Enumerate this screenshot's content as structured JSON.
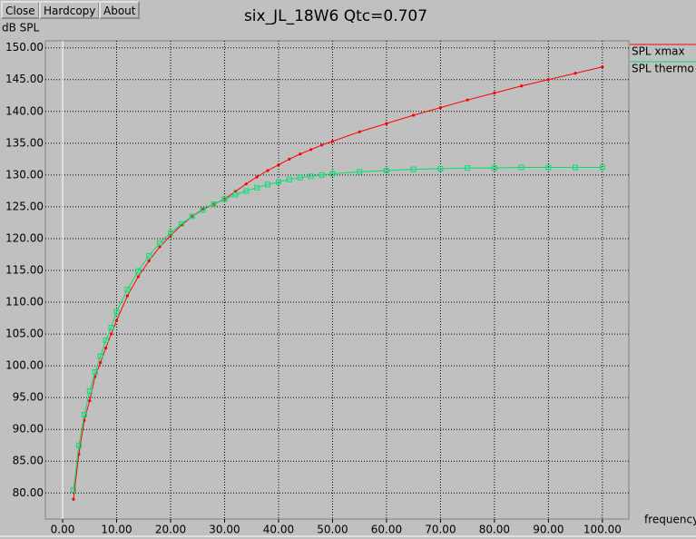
{
  "buttons": [
    "Close",
    "Hardcopy",
    "About"
  ],
  "chart_data": {
    "type": "line",
    "title": "six_JL_18W6 Qtc=0.707",
    "y_label": "dB SPL",
    "x_label": "frequency",
    "grid": true,
    "legend": "right",
    "xlim": [
      -3.2,
      104.9
    ],
    "ylim": [
      75.9,
      151.1
    ],
    "xticks": [
      {
        "value": 0,
        "label": "0.00"
      },
      {
        "value": 10,
        "label": "10.00"
      },
      {
        "value": 20,
        "label": "20.00"
      },
      {
        "value": 30,
        "label": "30.00"
      },
      {
        "value": 40,
        "label": "40.00"
      },
      {
        "value": 50,
        "label": "50.00"
      },
      {
        "value": 60,
        "label": "60.00"
      },
      {
        "value": 70,
        "label": "70.00"
      },
      {
        "value": 80,
        "label": "80.00"
      },
      {
        "value": 90,
        "label": "90.00"
      },
      {
        "value": 100,
        "label": "100.00"
      }
    ],
    "yticks": [
      {
        "value": 80,
        "label": "80.00"
      },
      {
        "value": 85,
        "label": "85.00"
      },
      {
        "value": 90,
        "label": "90.00"
      },
      {
        "value": 95,
        "label": "95.00"
      },
      {
        "value": 100,
        "label": "100.00"
      },
      {
        "value": 105,
        "label": "105.00"
      },
      {
        "value": 110,
        "label": "110.00"
      },
      {
        "value": 115,
        "label": "115.00"
      },
      {
        "value": 120,
        "label": "120.00"
      },
      {
        "value": 125,
        "label": "125.00"
      },
      {
        "value": 130,
        "label": "130.00"
      },
      {
        "value": 135,
        "label": "135.00"
      },
      {
        "value": 140,
        "label": "140.00"
      },
      {
        "value": 145,
        "label": "145.00"
      },
      {
        "value": 150,
        "label": "150.00"
      }
    ],
    "x": [
      2,
      3,
      4,
      5,
      6,
      7,
      8,
      9,
      10,
      12,
      14,
      16,
      18,
      20,
      22,
      24,
      26,
      28,
      30,
      32,
      34,
      36,
      38,
      40,
      42,
      44,
      46,
      48,
      50,
      55,
      60,
      65,
      70,
      75,
      80,
      85,
      90,
      95,
      100
    ],
    "series": [
      {
        "name": "SPL xmax",
        "color": "#ff0000",
        "marker": "dot",
        "values": [
          79,
          86.1,
          91.4,
          94.5,
          98.3,
          100.5,
          102.8,
          105,
          107.1,
          111,
          114,
          116.5,
          118.7,
          120.5,
          122.1,
          123.5,
          124.6,
          125.4,
          126.2,
          127.4,
          128.6,
          129.7,
          130.7,
          131.6,
          132.5,
          133.3,
          134,
          134.7,
          135.3,
          136.8,
          138.1,
          139.4,
          140.6,
          141.8,
          142.9,
          144,
          145,
          146,
          147
        ]
      },
      {
        "name": "SPL thermo",
        "color": "#00e070",
        "marker": "square",
        "values": [
          80.5,
          87.5,
          92.3,
          96,
          99,
          101.5,
          104,
          106,
          108.5,
          112,
          114.9,
          117.3,
          119.3,
          120.9,
          122.3,
          123.5,
          124.5,
          125.4,
          126.2,
          126.9,
          127.5,
          128,
          128.5,
          128.9,
          129.3,
          129.6,
          129.8,
          130,
          130.2,
          130.5,
          130.7,
          130.9,
          131,
          131.1,
          131.1,
          131.2,
          131.2,
          131.2,
          131.2
        ]
      }
    ]
  }
}
